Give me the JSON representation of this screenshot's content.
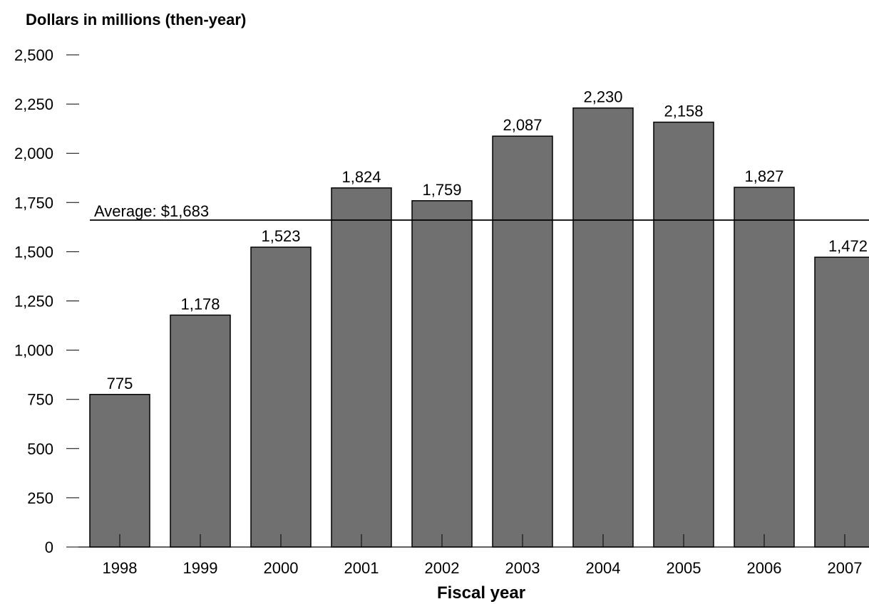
{
  "chart_data": {
    "type": "bar",
    "ylabel": "Dollars in millions (then-year)",
    "xlabel": "Fiscal year",
    "categories": [
      "1998",
      "1999",
      "2000",
      "2001",
      "2002",
      "2003",
      "2004",
      "2005",
      "2006",
      "2007"
    ],
    "values": [
      775,
      1178,
      1523,
      1824,
      1759,
      2087,
      2230,
      2158,
      1827,
      1472
    ],
    "data_labels": [
      "775",
      "1,178",
      "1,523",
      "1,824",
      "1,759",
      "2,087",
      "2,230",
      "2,158",
      "1,827",
      "1,472"
    ],
    "ylim": [
      0,
      2500
    ],
    "yticks": [
      0,
      250,
      500,
      750,
      1000,
      1250,
      1500,
      1750,
      2000,
      2250,
      2500
    ],
    "ytick_labels": [
      "0",
      "250",
      "500",
      "750",
      "1,000",
      "1,250",
      "1,500",
      "1,750",
      "2,000",
      "2,250",
      "2,500"
    ],
    "average": {
      "value": 1683,
      "label": "Average: $1,683"
    },
    "bar_color": "#707070",
    "grid": false,
    "legend": "none"
  }
}
